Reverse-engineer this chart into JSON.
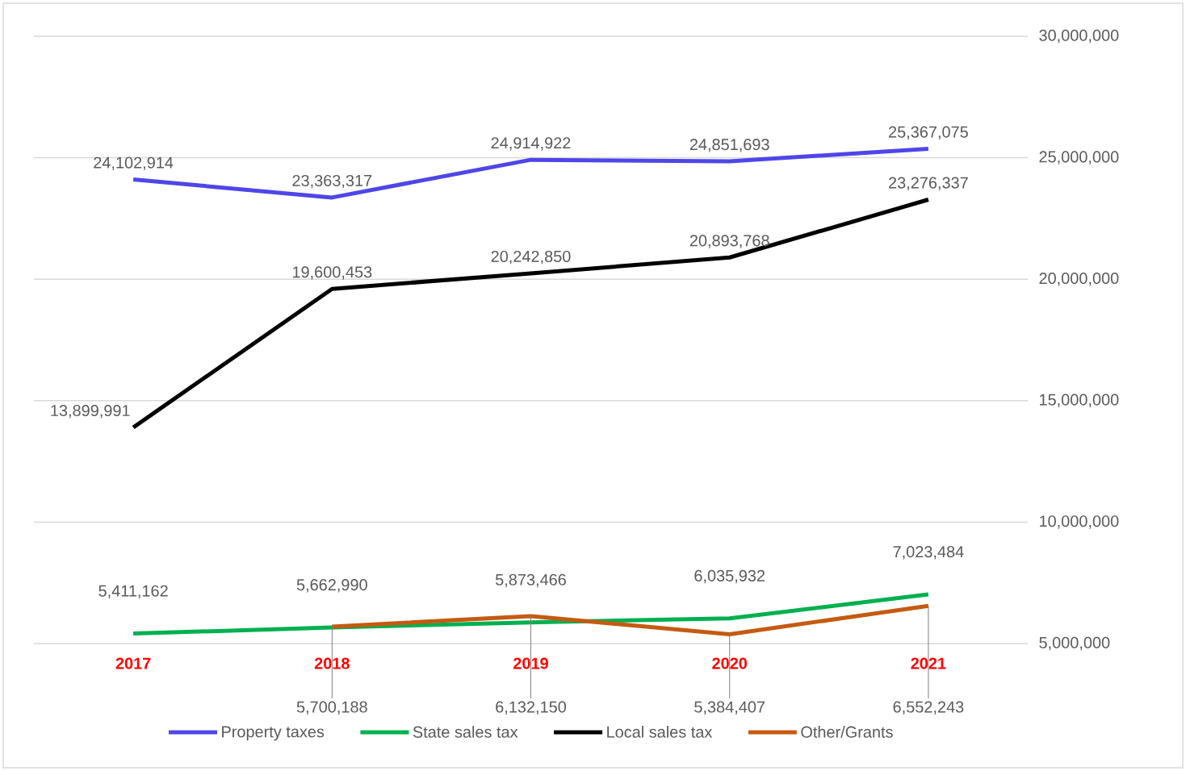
{
  "chart_data": {
    "type": "line",
    "categories": [
      "2017",
      "2018",
      "2019",
      "2020",
      "2021"
    ],
    "series": [
      {
        "name": "Property taxes",
        "color": "#4f46e8",
        "values": [
          24102914,
          23363317,
          24914922,
          24851693,
          25367075
        ],
        "value_labels": [
          "24,102,914",
          "23,363,317",
          "24,914,922",
          "24,851,693",
          "25,367,075"
        ]
      },
      {
        "name": "State sales tax",
        "color": "#00b050",
        "values": [
          5411162,
          5662990,
          5873466,
          6035932,
          7023484
        ],
        "value_labels": [
          "5,411,162",
          "5,662,990",
          "5,873,466",
          "6,035,932",
          "7,023,484"
        ]
      },
      {
        "name": "Local sales tax",
        "color": "#000000",
        "values": [
          13899991,
          19600453,
          20242850,
          20893768,
          23276337
        ],
        "value_labels": [
          "13,899,991",
          "19,600,453",
          "20,242,850",
          "20,893,768",
          "23,276,337"
        ]
      },
      {
        "name": "Other/Grants",
        "color": "#c55a11",
        "values": [
          null,
          5700188,
          6132150,
          5384407,
          6552243
        ],
        "value_labels": [
          null,
          "5,700,188",
          "6,132,150",
          "5,384,407",
          "6,552,243"
        ]
      }
    ],
    "ylim": [
      5000000,
      30000000
    ],
    "yticks": [
      {
        "value": 5000000,
        "label": "5,000,000"
      },
      {
        "value": 10000000,
        "label": "10,000,000"
      },
      {
        "value": 15000000,
        "label": "15,000,000"
      },
      {
        "value": 20000000,
        "label": "20,000,000"
      },
      {
        "value": 25000000,
        "label": "25,000,000"
      },
      {
        "value": 30000000,
        "label": "30,000,000"
      }
    ],
    "grid": "y",
    "legend": "bottom",
    "marker": "none",
    "line_style": "solid"
  }
}
